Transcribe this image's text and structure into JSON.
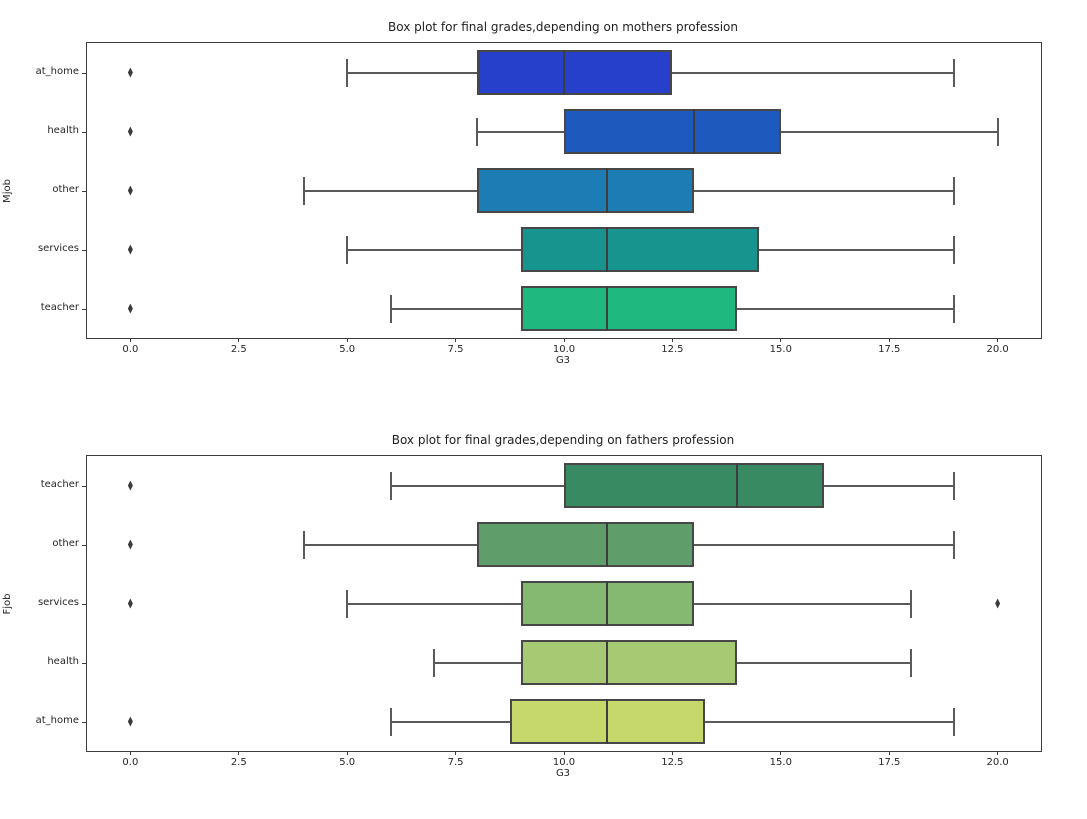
{
  "figure": {
    "background_color": "#ffffff",
    "text_color": "#262626",
    "spine_color": "#3c3c3c",
    "whisker_color": "#5a5a5a",
    "box_edge_color": "#474747",
    "median_color": "#3d3d3d",
    "outlier_color": "#3a3a3a"
  },
  "chart_data": [
    {
      "type": "boxplot",
      "orientation": "horizontal",
      "title": "Box plot for final grades,depending on mothers profession",
      "xlabel": "G3",
      "ylabel": "Mjob",
      "xlim": [
        -1,
        21
      ],
      "xtick_values": [
        0,
        2.5,
        5,
        7.5,
        10,
        12.5,
        15,
        17.5,
        20
      ],
      "xtick_labels": [
        "0.0",
        "2.5",
        "5.0",
        "7.5",
        "10.0",
        "12.5",
        "15.0",
        "17.5",
        "20.0"
      ],
      "categories": [
        "at_home",
        "health",
        "other",
        "services",
        "teacher"
      ],
      "grid": false,
      "legend": null,
      "boxes": [
        {
          "category": "at_home",
          "whislo": 5,
          "q1": 8,
          "med": 10,
          "q3": 12.5,
          "whishi": 19,
          "outliers": [
            0
          ],
          "color": "#2640cc"
        },
        {
          "category": "health",
          "whislo": 8,
          "q1": 10,
          "med": 13,
          "q3": 15,
          "whishi": 20,
          "outliers": [
            0
          ],
          "color": "#1e59bd"
        },
        {
          "category": "other",
          "whislo": 4,
          "q1": 8,
          "med": 11,
          "q3": 13,
          "whishi": 19,
          "outliers": [
            0
          ],
          "color": "#1c7cb3"
        },
        {
          "category": "services",
          "whislo": 5,
          "q1": 9,
          "med": 11,
          "q3": 14.5,
          "whishi": 19,
          "outliers": [
            0
          ],
          "color": "#17948e"
        },
        {
          "category": "teacher",
          "whislo": 6,
          "q1": 9,
          "med": 11,
          "q3": 14,
          "whishi": 19,
          "outliers": [
            0
          ],
          "color": "#1fb87e"
        }
      ]
    },
    {
      "type": "boxplot",
      "orientation": "horizontal",
      "title": "Box plot for final grades,depending on fathers profession",
      "xlabel": "G3",
      "ylabel": "Fjob",
      "xlim": [
        -1,
        21
      ],
      "xtick_values": [
        0,
        2.5,
        5,
        7.5,
        10,
        12.5,
        15,
        17.5,
        20
      ],
      "xtick_labels": [
        "0.0",
        "2.5",
        "5.0",
        "7.5",
        "10.0",
        "12.5",
        "15.0",
        "17.5",
        "20.0"
      ],
      "categories": [
        "teacher",
        "other",
        "services",
        "health",
        "at_home"
      ],
      "grid": false,
      "legend": null,
      "boxes": [
        {
          "category": "teacher",
          "whislo": 6,
          "q1": 10,
          "med": 14,
          "q3": 16,
          "whishi": 19,
          "outliers": [
            0
          ],
          "color": "#388a63"
        },
        {
          "category": "other",
          "whislo": 4,
          "q1": 8,
          "med": 11,
          "q3": 13,
          "whishi": 19,
          "outliers": [
            0
          ],
          "color": "#5f9e6a"
        },
        {
          "category": "services",
          "whislo": 5,
          "q1": 9,
          "med": 11,
          "q3": 13,
          "whishi": 18,
          "outliers": [
            0,
            20
          ],
          "color": "#85b871"
        },
        {
          "category": "health",
          "whislo": 7,
          "q1": 9,
          "med": 11,
          "q3": 14,
          "whishi": 18,
          "outliers": [],
          "color": "#a8c973"
        },
        {
          "category": "at_home",
          "whislo": 6,
          "q1": 8.75,
          "med": 11,
          "q3": 13.25,
          "whishi": 19,
          "outliers": [
            0
          ],
          "color": "#c6d76b"
        }
      ]
    }
  ]
}
